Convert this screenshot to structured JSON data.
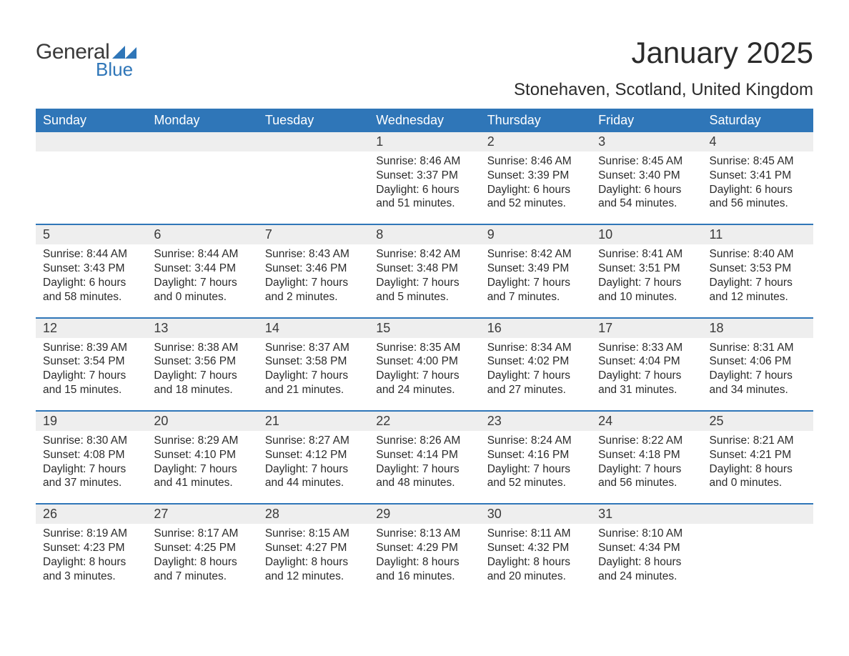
{
  "logo": {
    "word1": "General",
    "word2": "Blue",
    "tri_color": "#2f76b8"
  },
  "title": "January 2025",
  "location": "Stonehaven, Scotland, United Kingdom",
  "colors": {
    "header_bg": "#2f76b8",
    "header_text": "#ffffff",
    "band_bg": "#eeeeee",
    "body_text": "#2b2b2b",
    "rule": "#2f76b8"
  },
  "typography": {
    "title_fontsize": 42,
    "location_fontsize": 24,
    "header_fontsize": 18,
    "daynum_fontsize": 18,
    "body_fontsize": 15.5
  },
  "day_headers": [
    "Sunday",
    "Monday",
    "Tuesday",
    "Wednesday",
    "Thursday",
    "Friday",
    "Saturday"
  ],
  "weeks": [
    [
      null,
      null,
      null,
      {
        "n": "1",
        "sr": "Sunrise: 8:46 AM",
        "ss": "Sunset: 3:37 PM",
        "d1": "Daylight: 6 hours",
        "d2": "and 51 minutes."
      },
      {
        "n": "2",
        "sr": "Sunrise: 8:46 AM",
        "ss": "Sunset: 3:39 PM",
        "d1": "Daylight: 6 hours",
        "d2": "and 52 minutes."
      },
      {
        "n": "3",
        "sr": "Sunrise: 8:45 AM",
        "ss": "Sunset: 3:40 PM",
        "d1": "Daylight: 6 hours",
        "d2": "and 54 minutes."
      },
      {
        "n": "4",
        "sr": "Sunrise: 8:45 AM",
        "ss": "Sunset: 3:41 PM",
        "d1": "Daylight: 6 hours",
        "d2": "and 56 minutes."
      }
    ],
    [
      {
        "n": "5",
        "sr": "Sunrise: 8:44 AM",
        "ss": "Sunset: 3:43 PM",
        "d1": "Daylight: 6 hours",
        "d2": "and 58 minutes."
      },
      {
        "n": "6",
        "sr": "Sunrise: 8:44 AM",
        "ss": "Sunset: 3:44 PM",
        "d1": "Daylight: 7 hours",
        "d2": "and 0 minutes."
      },
      {
        "n": "7",
        "sr": "Sunrise: 8:43 AM",
        "ss": "Sunset: 3:46 PM",
        "d1": "Daylight: 7 hours",
        "d2": "and 2 minutes."
      },
      {
        "n": "8",
        "sr": "Sunrise: 8:42 AM",
        "ss": "Sunset: 3:48 PM",
        "d1": "Daylight: 7 hours",
        "d2": "and 5 minutes."
      },
      {
        "n": "9",
        "sr": "Sunrise: 8:42 AM",
        "ss": "Sunset: 3:49 PM",
        "d1": "Daylight: 7 hours",
        "d2": "and 7 minutes."
      },
      {
        "n": "10",
        "sr": "Sunrise: 8:41 AM",
        "ss": "Sunset: 3:51 PM",
        "d1": "Daylight: 7 hours",
        "d2": "and 10 minutes."
      },
      {
        "n": "11",
        "sr": "Sunrise: 8:40 AM",
        "ss": "Sunset: 3:53 PM",
        "d1": "Daylight: 7 hours",
        "d2": "and 12 minutes."
      }
    ],
    [
      {
        "n": "12",
        "sr": "Sunrise: 8:39 AM",
        "ss": "Sunset: 3:54 PM",
        "d1": "Daylight: 7 hours",
        "d2": "and 15 minutes."
      },
      {
        "n": "13",
        "sr": "Sunrise: 8:38 AM",
        "ss": "Sunset: 3:56 PM",
        "d1": "Daylight: 7 hours",
        "d2": "and 18 minutes."
      },
      {
        "n": "14",
        "sr": "Sunrise: 8:37 AM",
        "ss": "Sunset: 3:58 PM",
        "d1": "Daylight: 7 hours",
        "d2": "and 21 minutes."
      },
      {
        "n": "15",
        "sr": "Sunrise: 8:35 AM",
        "ss": "Sunset: 4:00 PM",
        "d1": "Daylight: 7 hours",
        "d2": "and 24 minutes."
      },
      {
        "n": "16",
        "sr": "Sunrise: 8:34 AM",
        "ss": "Sunset: 4:02 PM",
        "d1": "Daylight: 7 hours",
        "d2": "and 27 minutes."
      },
      {
        "n": "17",
        "sr": "Sunrise: 8:33 AM",
        "ss": "Sunset: 4:04 PM",
        "d1": "Daylight: 7 hours",
        "d2": "and 31 minutes."
      },
      {
        "n": "18",
        "sr": "Sunrise: 8:31 AM",
        "ss": "Sunset: 4:06 PM",
        "d1": "Daylight: 7 hours",
        "d2": "and 34 minutes."
      }
    ],
    [
      {
        "n": "19",
        "sr": "Sunrise: 8:30 AM",
        "ss": "Sunset: 4:08 PM",
        "d1": "Daylight: 7 hours",
        "d2": "and 37 minutes."
      },
      {
        "n": "20",
        "sr": "Sunrise: 8:29 AM",
        "ss": "Sunset: 4:10 PM",
        "d1": "Daylight: 7 hours",
        "d2": "and 41 minutes."
      },
      {
        "n": "21",
        "sr": "Sunrise: 8:27 AM",
        "ss": "Sunset: 4:12 PM",
        "d1": "Daylight: 7 hours",
        "d2": "and 44 minutes."
      },
      {
        "n": "22",
        "sr": "Sunrise: 8:26 AM",
        "ss": "Sunset: 4:14 PM",
        "d1": "Daylight: 7 hours",
        "d2": "and 48 minutes."
      },
      {
        "n": "23",
        "sr": "Sunrise: 8:24 AM",
        "ss": "Sunset: 4:16 PM",
        "d1": "Daylight: 7 hours",
        "d2": "and 52 minutes."
      },
      {
        "n": "24",
        "sr": "Sunrise: 8:22 AM",
        "ss": "Sunset: 4:18 PM",
        "d1": "Daylight: 7 hours",
        "d2": "and 56 minutes."
      },
      {
        "n": "25",
        "sr": "Sunrise: 8:21 AM",
        "ss": "Sunset: 4:21 PM",
        "d1": "Daylight: 8 hours",
        "d2": "and 0 minutes."
      }
    ],
    [
      {
        "n": "26",
        "sr": "Sunrise: 8:19 AM",
        "ss": "Sunset: 4:23 PM",
        "d1": "Daylight: 8 hours",
        "d2": "and 3 minutes."
      },
      {
        "n": "27",
        "sr": "Sunrise: 8:17 AM",
        "ss": "Sunset: 4:25 PM",
        "d1": "Daylight: 8 hours",
        "d2": "and 7 minutes."
      },
      {
        "n": "28",
        "sr": "Sunrise: 8:15 AM",
        "ss": "Sunset: 4:27 PM",
        "d1": "Daylight: 8 hours",
        "d2": "and 12 minutes."
      },
      {
        "n": "29",
        "sr": "Sunrise: 8:13 AM",
        "ss": "Sunset: 4:29 PM",
        "d1": "Daylight: 8 hours",
        "d2": "and 16 minutes."
      },
      {
        "n": "30",
        "sr": "Sunrise: 8:11 AM",
        "ss": "Sunset: 4:32 PM",
        "d1": "Daylight: 8 hours",
        "d2": "and 20 minutes."
      },
      {
        "n": "31",
        "sr": "Sunrise: 8:10 AM",
        "ss": "Sunset: 4:34 PM",
        "d1": "Daylight: 8 hours",
        "d2": "and 24 minutes."
      },
      null
    ]
  ]
}
